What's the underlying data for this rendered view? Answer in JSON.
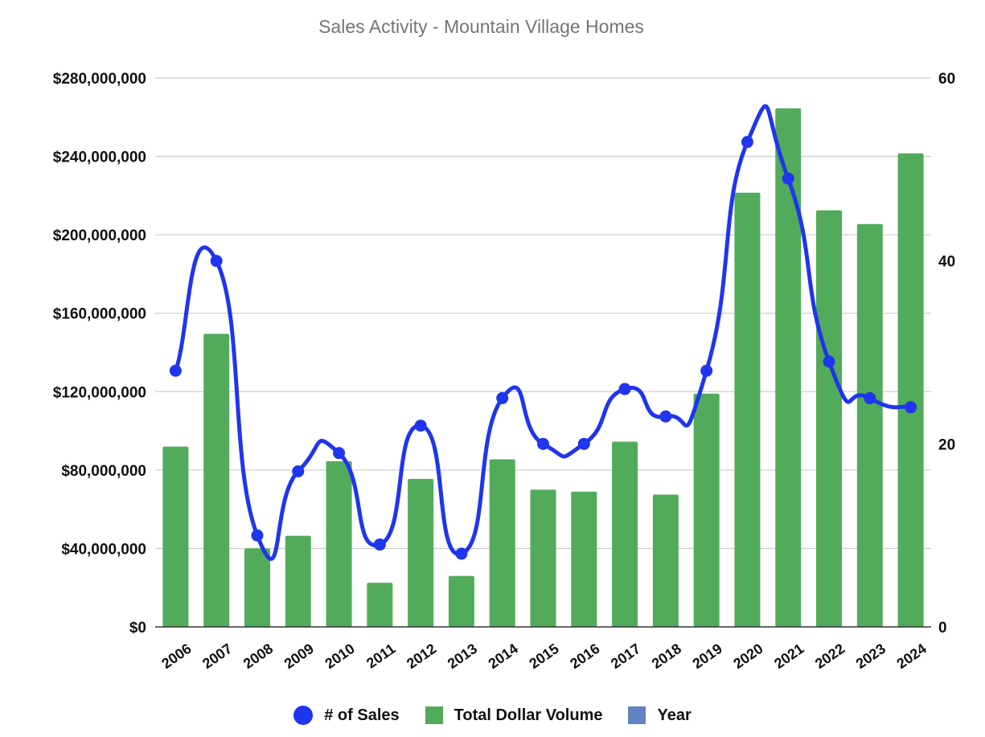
{
  "chart_data": {
    "type": "bar",
    "title": "Sales Activity - Mountain Village Homes",
    "categories": [
      "2006",
      "2007",
      "2008",
      "2009",
      "2010",
      "2011",
      "2012",
      "2013",
      "2014",
      "2015",
      "2016",
      "2017",
      "2018",
      "2019",
      "2020",
      "2021",
      "2022",
      "2023",
      "2024"
    ],
    "series": [
      {
        "name": "Total Dollar Volume",
        "type": "bar",
        "axis": "left",
        "color": "#52ab5a",
        "values": [
          92000000,
          149500000,
          40000000,
          46500000,
          84500000,
          22500000,
          75500000,
          26000000,
          85500000,
          70000000,
          69000000,
          94500000,
          67500000,
          119000000,
          221500000,
          264500000,
          212500000,
          205500000,
          241500000
        ]
      },
      {
        "name": "# of Sales",
        "type": "line",
        "smooth": true,
        "axis": "right",
        "color": "#1f35ee",
        "values": [
          28,
          40,
          10,
          17,
          19,
          9,
          22,
          8,
          25,
          20,
          20,
          26,
          23,
          28,
          53,
          49,
          29,
          25,
          24
        ]
      },
      {
        "name": "Year",
        "type": "legend-only",
        "color": "#6183c0"
      }
    ],
    "yleft": {
      "ylim": [
        0,
        280000000
      ],
      "ticks": [
        0,
        40000000,
        80000000,
        120000000,
        160000000,
        200000000,
        240000000,
        280000000
      ],
      "tick_labels": [
        "$0",
        "$40,000,000",
        "$80,000,000",
        "$120,000,000",
        "$160,000,000",
        "$200,000,000",
        "$240,000,000",
        "$280,000,000"
      ]
    },
    "yright": {
      "ylim": [
        0,
        60
      ],
      "ticks": [
        0,
        20,
        40,
        60
      ],
      "tick_labels": [
        "0",
        "20",
        "40",
        "60"
      ]
    },
    "grid": true,
    "legend_position": "bottom"
  },
  "legend": [
    {
      "label": "# of Sales",
      "color": "#1f35ee",
      "shape": "circle"
    },
    {
      "label": "Total Dollar Volume",
      "color": "#52ab5a",
      "shape": "square"
    },
    {
      "label": "Year",
      "color": "#6183c0",
      "shape": "square"
    }
  ]
}
